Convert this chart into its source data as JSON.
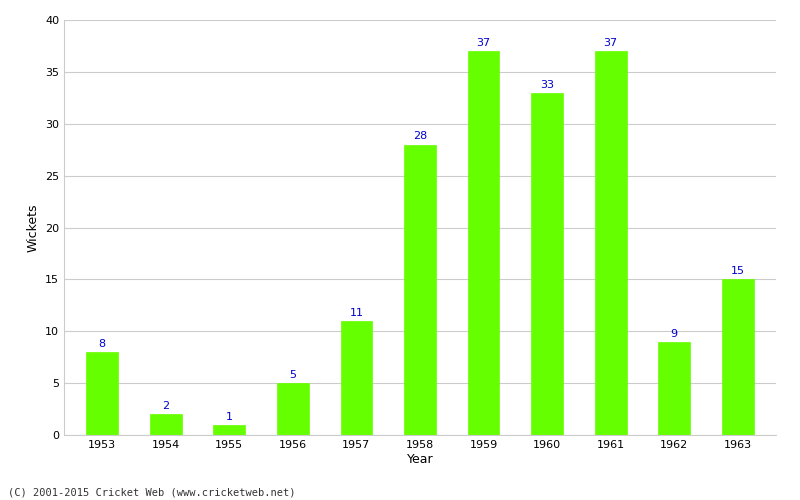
{
  "years": [
    "1953",
    "1954",
    "1955",
    "1956",
    "1957",
    "1958",
    "1959",
    "1960",
    "1961",
    "1962",
    "1963"
  ],
  "values": [
    8,
    2,
    1,
    5,
    11,
    28,
    37,
    33,
    37,
    9,
    15
  ],
  "bar_color": "#66ff00",
  "bar_edge_color": "#66ff00",
  "label_color": "#0000cc",
  "xlabel": "Year",
  "ylabel": "Wickets",
  "ylim": [
    0,
    40
  ],
  "yticks": [
    0,
    5,
    10,
    15,
    20,
    25,
    30,
    35,
    40
  ],
  "footnote": "(C) 2001-2015 Cricket Web (www.cricketweb.net)",
  "background_color": "#ffffff",
  "grid_color": "#cccccc",
  "label_fontsize": 8,
  "axis_label_fontsize": 9,
  "bar_width": 0.5
}
